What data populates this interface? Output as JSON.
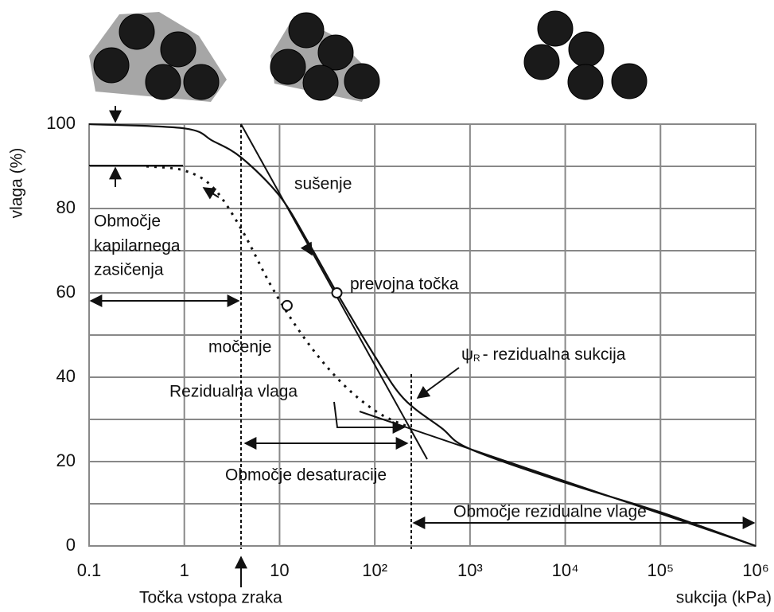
{
  "chart_data": {
    "type": "line",
    "xlabel": "sukcija (kPa)",
    "ylabel": "vlaga (%)",
    "xscale": "log",
    "xlim": [
      0.1,
      1000000
    ],
    "ylim": [
      0,
      100
    ],
    "xticks": [
      0.1,
      1,
      10,
      {
        "value": 100,
        "label": "10²"
      },
      {
        "value": 1000,
        "label": "10³"
      },
      {
        "value": 10000,
        "label": "10⁴"
      },
      {
        "value": 100000,
        "label": "10⁵"
      },
      {
        "value": 1000000,
        "label": "10⁶"
      }
    ],
    "yticks": [
      0,
      20,
      40,
      60,
      80,
      100
    ],
    "yminor": [
      10,
      30,
      50,
      70,
      90
    ],
    "grid": true,
    "series": [
      {
        "name": "sušenje",
        "color": "#111111",
        "style": "solid",
        "x": [
          0.1,
          1,
          2,
          4,
          10,
          20,
          40,
          100,
          200,
          500,
          1000,
          10000,
          100000,
          1000000
        ],
        "values": [
          100,
          99,
          96,
          92,
          83,
          72,
          60,
          45,
          35,
          28,
          23,
          15,
          8,
          0
        ]
      },
      {
        "name": "močenje",
        "color": "#111111",
        "style": "dashed",
        "x": [
          0.4,
          1,
          2,
          4,
          8,
          15,
          30,
          60,
          120,
          240
        ],
        "values": [
          90,
          89,
          85,
          75,
          62,
          52,
          43,
          36,
          31,
          28
        ]
      }
    ],
    "points": [
      {
        "name": "prevojna točka",
        "x": 40,
        "y": 60
      },
      {
        "x": 12,
        "y": 57
      }
    ],
    "annotations": {
      "capillary": [
        "Območje",
        "kapilarnega",
        "zasičenja"
      ],
      "residual_suction": [
        "ψ",
        "R",
        "- rezidualna sukcija"
      ],
      "residual_moisture": "Rezidualna vlaga",
      "desaturation": "Območje desaturacije",
      "residual_zone": "Območje rezidualne vlage",
      "air_entry": "Točka vstopa zraka"
    }
  }
}
